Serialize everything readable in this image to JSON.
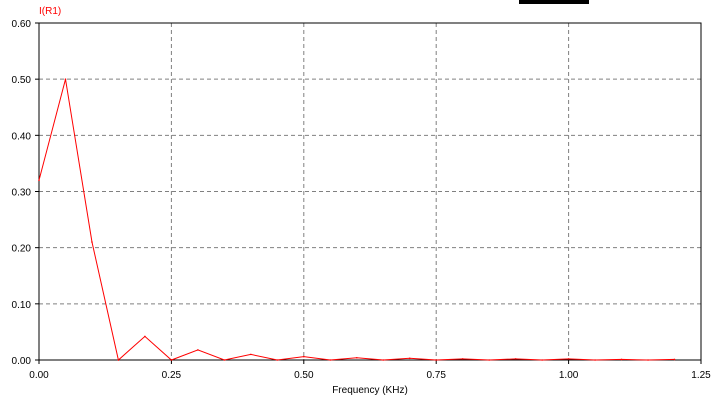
{
  "chart_data": {
    "type": "line",
    "title": "",
    "xlabel": "Frequency (KHz)",
    "ylabel": "",
    "xlim": [
      0,
      1.25
    ],
    "ylim": [
      0,
      0.6
    ],
    "x_ticks": [
      "0.00",
      "0.25",
      "0.50",
      "0.75",
      "1.00",
      "1.25"
    ],
    "y_ticks": [
      "0.00",
      "0.10",
      "0.20",
      "0.30",
      "0.40",
      "0.50",
      "0.60"
    ],
    "grid": true,
    "legend": "none",
    "series": [
      {
        "name": "I(R1)",
        "color": "#ff0000",
        "x": [
          0,
          0.05,
          0.1,
          0.15,
          0.2,
          0.25,
          0.3,
          0.35,
          0.4,
          0.45,
          0.5,
          0.55,
          0.6,
          0.65,
          0.7,
          0.75,
          0.8,
          0.85,
          0.9,
          0.95,
          1.0,
          1.05,
          1.1,
          1.15,
          1.2
        ],
        "y": [
          0.32,
          0.5,
          0.21,
          0.0,
          0.042,
          0.0,
          0.018,
          0.0,
          0.01,
          0.0,
          0.006,
          0.0,
          0.004,
          0.0,
          0.003,
          0.0,
          0.002,
          0.0,
          0.002,
          0.0,
          0.002,
          0.0,
          0.001,
          0.0,
          0.001
        ]
      }
    ]
  },
  "colors": {
    "series": "#ff0000",
    "grid": "#808080",
    "axis": "#000000",
    "background": "#ffffff"
  }
}
